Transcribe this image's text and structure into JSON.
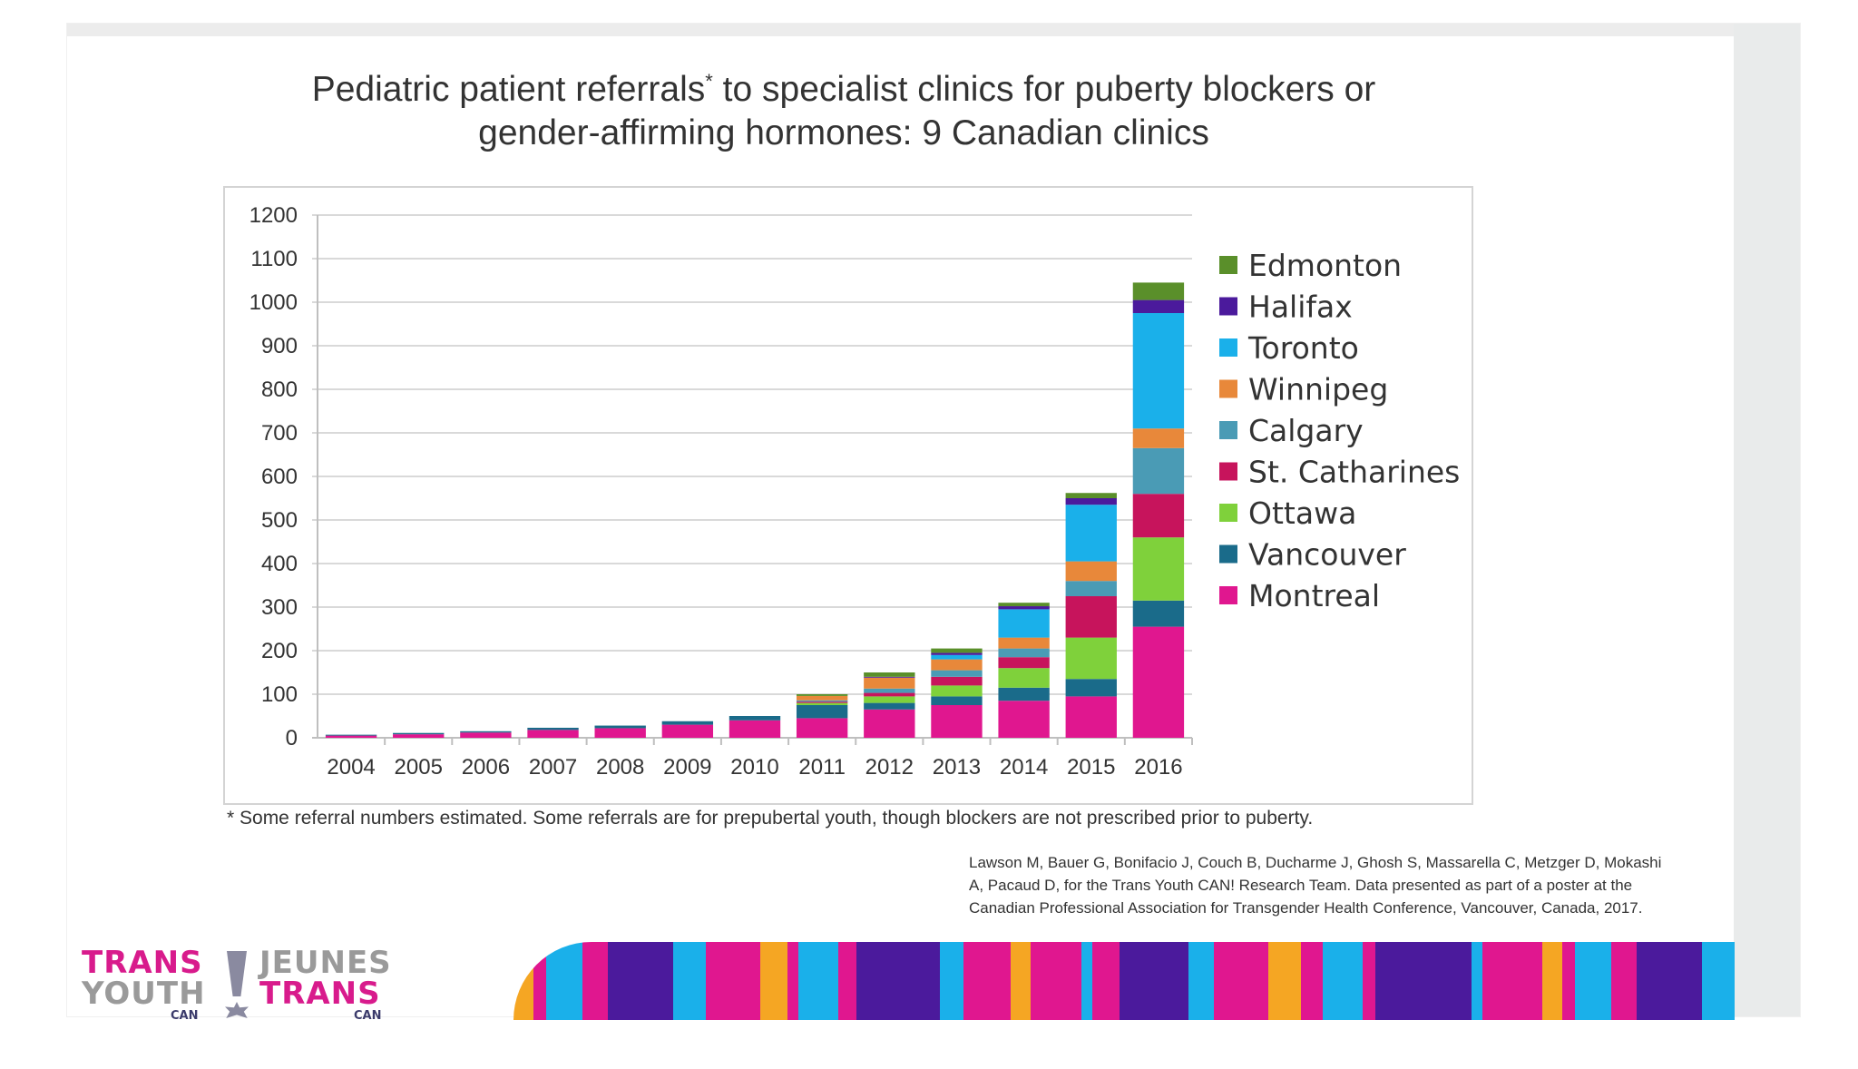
{
  "slide": {
    "title_line1_pre": "Pediatric patient referrals",
    "title_sup": "*",
    "title_line1_post": " to specialist clinics for puberty blockers or",
    "title_line2": "gender-affirming hormones: 9 Canadian clinics",
    "footnote": "* Some referral numbers estimated. Some referrals are for prepubertal youth, though blockers are not prescribed prior to puberty.",
    "citation_line1": "Lawson M, Bauer G, Bonifacio J, Couch B, Ducharme J, Ghosh S, Massarella C, Metzger D, Mokashi",
    "citation_line2": "A, Pacaud D, for the Trans Youth CAN! Research Team. Data presented as part of a poster at the",
    "citation_line3": "Canadian Professional Association for Transgender Health Conference, Vancouver, Canada, 2017."
  },
  "logo": {
    "en_line1": "TRANS",
    "en_line2": "YOUTH",
    "fr_line1": "JEUNES",
    "fr_line2": "TRANS",
    "can_left": "CAN",
    "can_right": "CAN"
  },
  "colors": {
    "Montreal": "#e0178f",
    "Vancouver": "#1a6b8a",
    "Ottawa": "#7fd13b",
    "St. Catharines": "#c7145c",
    "Calgary": "#4a9bb5",
    "Winnipeg": "#e8883a",
    "Toronto": "#1ab0ea",
    "Halifax": "#4b1a9c",
    "Edmonton": "#5a8f2a",
    "grid": "#d9d9d9",
    "axis": "#bfbfbf",
    "text": "#333333"
  },
  "stripe_colors": [
    "#e0178f",
    "#4b1a9c",
    "#1ab0ea",
    "#f5a623",
    "#e0178f",
    "#4b1a9c",
    "#e0178f",
    "#1ab0ea",
    "#4b1a9c",
    "#e0178f"
  ],
  "chart_data": {
    "type": "bar",
    "stacked": true,
    "categories": [
      "2004",
      "2005",
      "2006",
      "2007",
      "2008",
      "2009",
      "2010",
      "2011",
      "2012",
      "2013",
      "2014",
      "2015",
      "2016"
    ],
    "series": [
      {
        "name": "Montreal",
        "values": [
          5,
          8,
          12,
          18,
          22,
          30,
          40,
          45,
          65,
          75,
          85,
          95,
          255
        ]
      },
      {
        "name": "Vancouver",
        "values": [
          2,
          3,
          3,
          5,
          6,
          8,
          10,
          30,
          15,
          20,
          30,
          40,
          60
        ]
      },
      {
        "name": "Ottawa",
        "values": [
          0,
          0,
          0,
          0,
          0,
          0,
          0,
          5,
          15,
          25,
          45,
          95,
          145
        ]
      },
      {
        "name": "St. Catharines",
        "values": [
          0,
          0,
          0,
          0,
          0,
          0,
          0,
          3,
          8,
          20,
          25,
          95,
          100
        ]
      },
      {
        "name": "Calgary",
        "values": [
          0,
          0,
          0,
          0,
          0,
          0,
          0,
          3,
          10,
          15,
          20,
          35,
          105
        ]
      },
      {
        "name": "Winnipeg",
        "values": [
          0,
          0,
          0,
          0,
          0,
          0,
          0,
          10,
          25,
          25,
          25,
          45,
          45
        ]
      },
      {
        "name": "Toronto",
        "values": [
          0,
          0,
          0,
          0,
          0,
          0,
          0,
          0,
          0,
          10,
          65,
          130,
          265
        ]
      },
      {
        "name": "Halifax",
        "values": [
          0,
          0,
          0,
          0,
          0,
          0,
          0,
          0,
          2,
          5,
          7,
          15,
          30
        ]
      },
      {
        "name": "Edmonton",
        "values": [
          0,
          0,
          0,
          0,
          0,
          0,
          0,
          4,
          10,
          10,
          8,
          12,
          40
        ]
      }
    ],
    "legend_order": [
      "Edmonton",
      "Halifax",
      "Toronto",
      "Winnipeg",
      "Calgary",
      "St. Catharines",
      "Ottawa",
      "Vancouver",
      "Montreal"
    ],
    "yticks": [
      "0",
      "100",
      "200",
      "300",
      "400",
      "500",
      "600",
      "700",
      "800",
      "900",
      "1000",
      "1100",
      "1200"
    ],
    "ylim": [
      0,
      1200
    ],
    "title": "",
    "xlabel": "",
    "ylabel": "",
    "legend_position": "right",
    "grid": true
  }
}
